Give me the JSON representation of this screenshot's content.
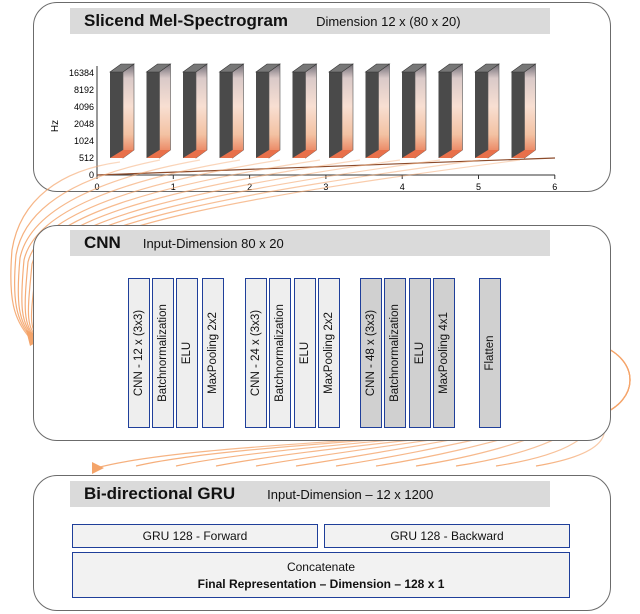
{
  "spectrogram": {
    "title": "Slicend Mel-Spectrogram",
    "dimension": "Dimension 12 x (80 x 20)",
    "y_axis_label": "Hz",
    "y_ticks": [
      "16384",
      "8192",
      "4096",
      "2048",
      "1024",
      "512",
      "0"
    ],
    "x_ticks": [
      "0",
      "1",
      "2",
      "3",
      "4",
      "5",
      "6"
    ],
    "slice_count": 12
  },
  "cnn": {
    "title": "CNN",
    "input_dimension": "Input-Dimension 80 x 20",
    "layers": [
      {
        "label": "CNN - 12 x (3x3)",
        "shade": "g1"
      },
      {
        "label": "Batchnormalization",
        "shade": "g1"
      },
      {
        "label": "ELU",
        "shade": "g1"
      },
      {
        "label": "MaxPooling 2x2",
        "shade": "g1"
      },
      {
        "label": "CNN - 24 x (3x3)",
        "shade": "g1"
      },
      {
        "label": "Batchnormalization",
        "shade": "g1"
      },
      {
        "label": "ELU",
        "shade": "g1"
      },
      {
        "label": "MaxPooling 2x2",
        "shade": "g1"
      },
      {
        "label": "CNN - 48 x (3x3)",
        "shade": "g2"
      },
      {
        "label": "Batchnormalization",
        "shade": "g2"
      },
      {
        "label": "ELU",
        "shade": "g2"
      },
      {
        "label": "MaxPooling 4x1",
        "shade": "g2"
      },
      {
        "label": "Flatten",
        "shade": "g2"
      }
    ]
  },
  "gru": {
    "title": "Bi-directional GRU",
    "input_dimension": "Input-Dimension – 12 x 1200",
    "forward": "GRU 128 - Forward",
    "backward": "GRU 128 - Backward",
    "concatenate": "Concatenate",
    "final": "Final Representation – Dimension – 128 x 1"
  },
  "colors": {
    "border_blue": "#1f3f9a",
    "arrow_orange": "#f4a46a",
    "header_gray": "#dadada"
  }
}
